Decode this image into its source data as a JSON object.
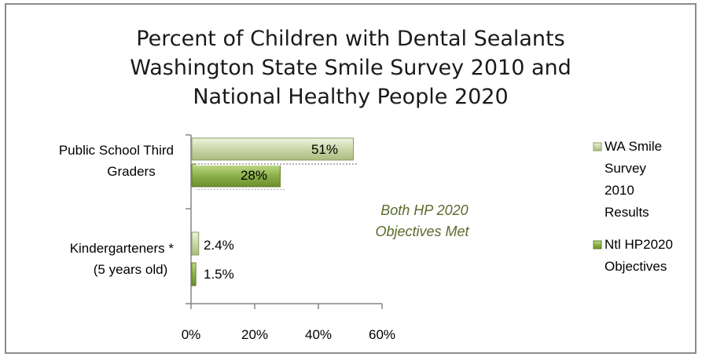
{
  "chart_data": {
    "type": "bar",
    "orientation": "horizontal",
    "title_lines": [
      "Percent of Children with Dental Sealants",
      "Washington State Smile Survey 2010 and",
      "National Healthy People 2020"
    ],
    "categories": [
      [
        "Public School Third",
        "Graders"
      ],
      [
        "Kindergarteners *",
        "(5 years old)"
      ]
    ],
    "series": [
      {
        "name_lines": [
          "WA Smile",
          "Survey",
          "2010",
          "Results"
        ],
        "values": [
          51,
          2.4
        ],
        "labels": [
          "51%",
          "2.4%"
        ],
        "color": "#c9d6a8"
      },
      {
        "name_lines": [
          "Ntl HP2020",
          "Objectives"
        ],
        "values": [
          28,
          1.5
        ],
        "labels": [
          "28%",
          "1.5%"
        ],
        "color": "#8db24a"
      }
    ],
    "xlim": [
      0,
      60
    ],
    "xticks": [
      "0%",
      "20%",
      "40%",
      "60%"
    ],
    "xlabel": "",
    "ylabel": "",
    "legend_position": "right",
    "annotation_lines": [
      "Both HP 2020",
      "Objectives Met"
    ],
    "colors": {
      "annotation": "#5a6b2a",
      "axis": "#868686",
      "frame": "#8c8c8c"
    }
  }
}
